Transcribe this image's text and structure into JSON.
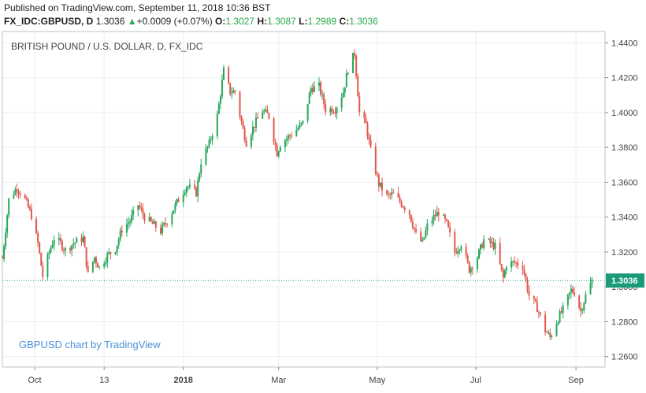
{
  "header": {
    "published": "Published on TradingView.com, September 11, 2018 10:36 BST",
    "symbol": "FX_IDC:GBPUSD, D",
    "last": "1.3036",
    "change_arrow": "▲",
    "change": "+0.0009 (+0.07%)",
    "o_label": "O:",
    "o_value": "1.3027",
    "h_label": "H:",
    "h_value": "1.3087",
    "l_label": "L:",
    "l_value": "1.2989",
    "c_label": "C:",
    "c_value": "1.3036"
  },
  "chart_data": {
    "type": "candlestick",
    "title": "BRITISH POUND / U.S. DOLLAR, D, FX_IDC",
    "watermark": "GBPUSD chart by TradingView",
    "x_ticks": [
      "Oct",
      "13",
      "2018",
      "Mar",
      "May",
      "Jul",
      "Sep"
    ],
    "x_tick_dates": [
      "2017-10-01",
      "2017-11-13",
      "2018-01-01",
      "2018-03-01",
      "2018-05-01",
      "2018-07-01",
      "2018-09-01"
    ],
    "y_ticks": [
      "1.4400",
      "1.4200",
      "1.4000",
      "1.3800",
      "1.3600",
      "1.3400",
      "1.3200",
      "1.3000",
      "1.2800",
      "1.2600"
    ],
    "ylim": [
      1.254,
      1.4465
    ],
    "xlim": [
      "2017-09-11",
      "2018-09-19"
    ],
    "last_price": 1.3036,
    "last_price_label": "1.3036",
    "up_color": "#26a65b",
    "down_color": "#e0584b",
    "anchors": [
      [
        "2017-09-11",
        1.316
      ],
      [
        "2017-09-15",
        1.35
      ],
      [
        "2017-09-20",
        1.357
      ],
      [
        "2017-09-25",
        1.35
      ],
      [
        "2017-09-29",
        1.341
      ],
      [
        "2017-10-03",
        1.325
      ],
      [
        "2017-10-06",
        1.306
      ],
      [
        "2017-10-10",
        1.32
      ],
      [
        "2017-10-13",
        1.328
      ],
      [
        "2017-10-17",
        1.325
      ],
      [
        "2017-10-20",
        1.321
      ],
      [
        "2017-10-25",
        1.325
      ],
      [
        "2017-10-31",
        1.328
      ],
      [
        "2017-11-03",
        1.307
      ],
      [
        "2017-11-07",
        1.317
      ],
      [
        "2017-11-10",
        1.311
      ],
      [
        "2017-11-15",
        1.318
      ],
      [
        "2017-11-20",
        1.322
      ],
      [
        "2017-11-24",
        1.333
      ],
      [
        "2017-11-29",
        1.338
      ],
      [
        "2017-12-04",
        1.347
      ],
      [
        "2017-12-08",
        1.34
      ],
      [
        "2017-12-13",
        1.336
      ],
      [
        "2017-12-18",
        1.332
      ],
      [
        "2017-12-22",
        1.338
      ],
      [
        "2017-12-29",
        1.35
      ],
      [
        "2018-01-03",
        1.358
      ],
      [
        "2018-01-09",
        1.354
      ],
      [
        "2018-01-12",
        1.372
      ],
      [
        "2018-01-17",
        1.382
      ],
      [
        "2018-01-22",
        1.398
      ],
      [
        "2018-01-26",
        1.424
      ],
      [
        "2018-01-30",
        1.412
      ],
      [
        "2018-02-02",
        1.412
      ],
      [
        "2018-02-07",
        1.39
      ],
      [
        "2018-02-09",
        1.383
      ],
      [
        "2018-02-14",
        1.393
      ],
      [
        "2018-02-19",
        1.401
      ],
      [
        "2018-02-23",
        1.398
      ],
      [
        "2018-02-28",
        1.377
      ],
      [
        "2018-03-02",
        1.382
      ],
      [
        "2018-03-07",
        1.386
      ],
      [
        "2018-03-13",
        1.391
      ],
      [
        "2018-03-16",
        1.394
      ],
      [
        "2018-03-21",
        1.414
      ],
      [
        "2018-03-26",
        1.415
      ],
      [
        "2018-03-30",
        1.402
      ],
      [
        "2018-04-05",
        1.402
      ],
      [
        "2018-04-10",
        1.412
      ],
      [
        "2018-04-13",
        1.425
      ],
      [
        "2018-04-17",
        1.434
      ],
      [
        "2018-04-20",
        1.4
      ],
      [
        "2018-04-24",
        1.393
      ],
      [
        "2018-04-27",
        1.378
      ],
      [
        "2018-05-02",
        1.359
      ],
      [
        "2018-05-07",
        1.352
      ],
      [
        "2018-05-11",
        1.353
      ],
      [
        "2018-05-16",
        1.348
      ],
      [
        "2018-05-21",
        1.342
      ],
      [
        "2018-05-25",
        1.33
      ],
      [
        "2018-05-29",
        1.325
      ],
      [
        "2018-06-01",
        1.335
      ],
      [
        "2018-06-05",
        1.34
      ],
      [
        "2018-06-08",
        1.343
      ],
      [
        "2018-06-13",
        1.336
      ],
      [
        "2018-06-18",
        1.32
      ],
      [
        "2018-06-22",
        1.325
      ],
      [
        "2018-06-27",
        1.31
      ],
      [
        "2018-07-02",
        1.317
      ],
      [
        "2018-07-06",
        1.327
      ],
      [
        "2018-07-10",
        1.325
      ],
      [
        "2018-07-13",
        1.323
      ],
      [
        "2018-07-18",
        1.305
      ],
      [
        "2018-07-20",
        1.313
      ],
      [
        "2018-07-25",
        1.314
      ],
      [
        "2018-07-30",
        1.312
      ],
      [
        "2018-08-03",
        1.295
      ],
      [
        "2018-08-08",
        1.288
      ],
      [
        "2018-08-13",
        1.275
      ],
      [
        "2018-08-16",
        1.271
      ],
      [
        "2018-08-21",
        1.282
      ],
      [
        "2018-08-24",
        1.287
      ],
      [
        "2018-08-29",
        1.298
      ],
      [
        "2018-08-31",
        1.297
      ],
      [
        "2018-09-04",
        1.286
      ],
      [
        "2018-09-07",
        1.295
      ],
      [
        "2018-09-11",
        1.3036
      ]
    ]
  }
}
